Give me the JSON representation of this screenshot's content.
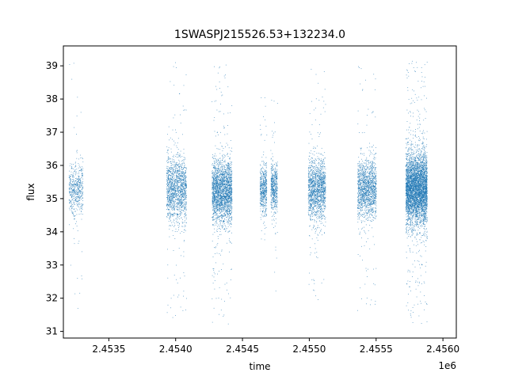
{
  "chart_data": {
    "type": "scatter",
    "title": "1SWASPJ215526.53+132234.0",
    "xlabel": "time",
    "ylabel": "flux",
    "x_offset_label": "1e6",
    "xlim": [
      2453160,
      2456100
    ],
    "ylim": [
      30.8,
      39.6
    ],
    "x_ticks": [
      2453500,
      2454000,
      2454500,
      2455000,
      2455500,
      2456000
    ],
    "x_tick_labels": [
      "2.4535",
      "2.4540",
      "2.4545",
      "2.4550",
      "2.4555",
      "2.4560"
    ],
    "y_ticks": [
      31,
      32,
      33,
      34,
      35,
      36,
      37,
      38,
      39
    ],
    "y_tick_labels": [
      "31",
      "32",
      "33",
      "34",
      "35",
      "36",
      "37",
      "38",
      "39"
    ],
    "grid": false,
    "legend": "none",
    "color": "#1f77b4",
    "series": [
      {
        "observing_seasons": [
          {
            "x_start": 2453200,
            "x_end": 2453305,
            "y_center": 35.3,
            "y_core_spread": 0.65,
            "y_min": 31.7,
            "y_max": 39.1,
            "density": "low"
          },
          {
            "x_start": 2453930,
            "x_end": 2454080,
            "y_center": 35.3,
            "y_core_spread": 0.8,
            "y_min": 31.2,
            "y_max": 39.2,
            "density": "medium"
          },
          {
            "x_start": 2454270,
            "x_end": 2454420,
            "y_center": 35.2,
            "y_core_spread": 0.8,
            "y_min": 31.2,
            "y_max": 39.2,
            "density": "high"
          },
          {
            "x_start": 2454630,
            "x_end": 2454680,
            "y_center": 35.3,
            "y_core_spread": 0.6,
            "y_min": 33.6,
            "y_max": 38.2,
            "density": "low"
          },
          {
            "x_start": 2454710,
            "x_end": 2454760,
            "y_center": 35.3,
            "y_core_spread": 0.6,
            "y_min": 32.2,
            "y_max": 38.4,
            "density": "low"
          },
          {
            "x_start": 2454990,
            "x_end": 2455120,
            "y_center": 35.3,
            "y_core_spread": 0.75,
            "y_min": 31.9,
            "y_max": 39.2,
            "density": "medium"
          },
          {
            "x_start": 2455360,
            "x_end": 2455500,
            "y_center": 35.3,
            "y_core_spread": 0.75,
            "y_min": 31.6,
            "y_max": 39.1,
            "density": "medium"
          },
          {
            "x_start": 2455720,
            "x_end": 2455880,
            "y_center": 35.3,
            "y_core_spread": 0.9,
            "y_min": 31.2,
            "y_max": 39.2,
            "density": "very-high"
          }
        ]
      }
    ]
  }
}
